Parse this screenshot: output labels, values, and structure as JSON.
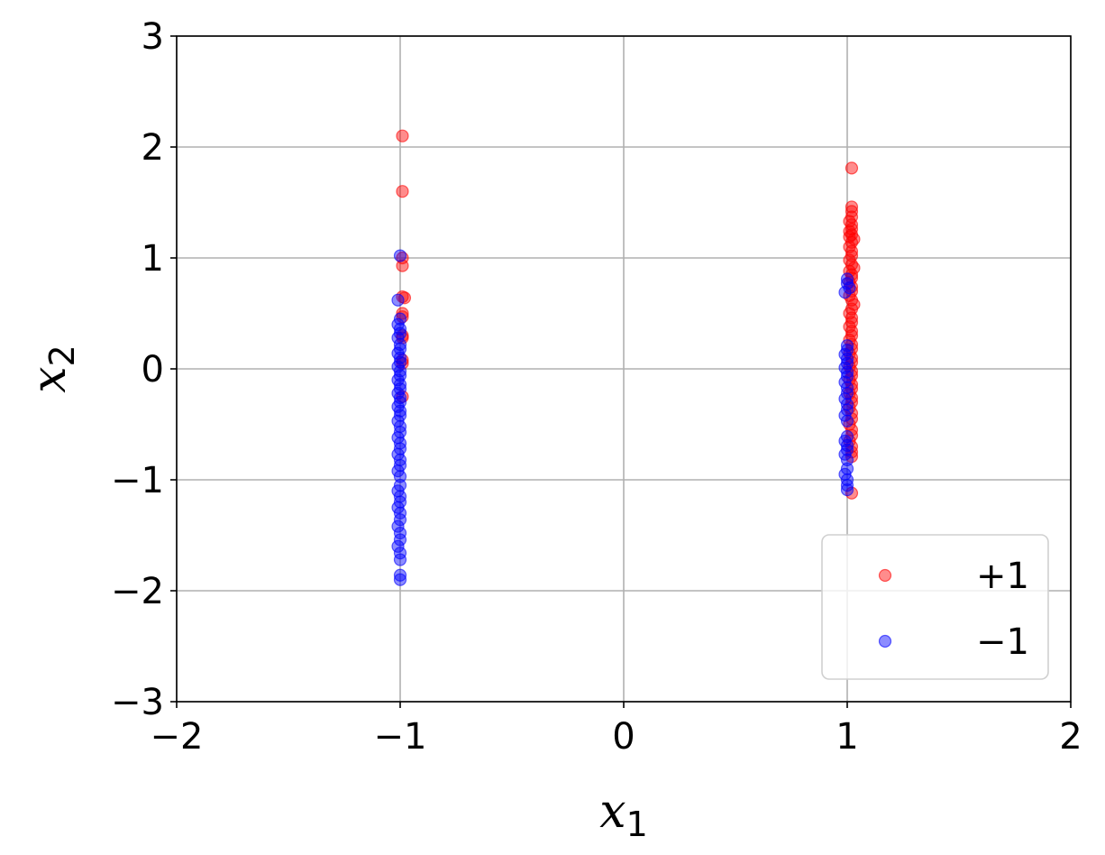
{
  "chart_data": {
    "type": "scatter",
    "xlabel": "x",
    "xlabel_sub": "1",
    "ylabel": "x",
    "ylabel_sub": "2",
    "xlim": [
      -2,
      2
    ],
    "ylim": [
      -3,
      3
    ],
    "xticks": [
      -2,
      -1,
      0,
      1,
      2
    ],
    "xtick_labels": [
      "−2",
      "−1",
      "0",
      "1",
      "2"
    ],
    "yticks": [
      -3,
      -2,
      -1,
      0,
      1,
      2,
      3
    ],
    "ytick_labels": [
      "−3",
      "−2",
      "−1",
      "0",
      "1",
      "2",
      "3"
    ],
    "grid": true,
    "legend_position": "bottom-right",
    "series": [
      {
        "name": "+1",
        "color": "#ff0000",
        "alpha": 0.45,
        "points": [
          [
            -0.99,
            2.1
          ],
          [
            -0.99,
            1.6
          ],
          [
            -0.99,
            1.0
          ],
          [
            -0.99,
            0.93
          ],
          [
            -0.99,
            0.65
          ],
          [
            -0.98,
            0.64
          ],
          [
            -0.99,
            0.5
          ],
          [
            -0.99,
            0.47
          ],
          [
            -0.99,
            0.3
          ],
          [
            -0.99,
            0.28
          ],
          [
            -0.99,
            0.08
          ],
          [
            -0.99,
            0.05
          ],
          [
            -0.99,
            -0.25
          ],
          [
            1.02,
            1.81
          ],
          [
            1.02,
            1.46
          ],
          [
            1.02,
            1.42
          ],
          [
            1.02,
            1.37
          ],
          [
            1.01,
            1.33
          ],
          [
            1.02,
            1.3
          ],
          [
            1.02,
            1.26
          ],
          [
            1.01,
            1.24
          ],
          [
            1.02,
            1.21
          ],
          [
            1.01,
            1.19
          ],
          [
            1.03,
            1.17
          ],
          [
            1.02,
            1.14
          ],
          [
            1.01,
            1.1
          ],
          [
            1.02,
            1.06
          ],
          [
            1.02,
            1.02
          ],
          [
            1.01,
            0.98
          ],
          [
            1.02,
            0.94
          ],
          [
            1.03,
            0.91
          ],
          [
            1.01,
            0.88
          ],
          [
            1.02,
            0.85
          ],
          [
            1.02,
            0.82
          ],
          [
            1.01,
            0.78
          ],
          [
            1.02,
            0.74
          ],
          [
            1.02,
            0.7
          ],
          [
            1.01,
            0.66
          ],
          [
            1.02,
            0.62
          ],
          [
            1.03,
            0.58
          ],
          [
            1.02,
            0.54
          ],
          [
            1.01,
            0.5
          ],
          [
            1.02,
            0.46
          ],
          [
            1.02,
            0.42
          ],
          [
            1.01,
            0.38
          ],
          [
            1.02,
            0.34
          ],
          [
            1.02,
            0.3
          ],
          [
            1.01,
            0.26
          ],
          [
            1.02,
            0.22
          ],
          [
            1.02,
            0.18
          ],
          [
            1.01,
            0.14
          ],
          [
            1.02,
            0.1
          ],
          [
            1.02,
            0.06
          ],
          [
            1.01,
            0.02
          ],
          [
            1.02,
            -0.02
          ],
          [
            1.02,
            -0.06
          ],
          [
            1.01,
            -0.1
          ],
          [
            1.02,
            -0.14
          ],
          [
            1.02,
            -0.18
          ],
          [
            1.01,
            -0.22
          ],
          [
            1.02,
            -0.26
          ],
          [
            1.02,
            -0.3
          ],
          [
            1.01,
            -0.35
          ],
          [
            1.02,
            -0.4
          ],
          [
            1.02,
            -0.45
          ],
          [
            1.01,
            -0.5
          ],
          [
            1.02,
            -0.55
          ],
          [
            1.02,
            -0.6
          ],
          [
            1.01,
            -0.65
          ],
          [
            1.02,
            -0.7
          ],
          [
            1.02,
            -0.75
          ],
          [
            1.02,
            -0.79
          ],
          [
            1.02,
            -1.12
          ]
        ]
      },
      {
        "name": "−1",
        "color": "#0000ff",
        "alpha": 0.45,
        "points": [
          [
            -1.0,
            1.02
          ],
          [
            -1.01,
            0.62
          ],
          [
            -1.0,
            0.45
          ],
          [
            -1.01,
            0.4
          ],
          [
            -1.0,
            0.36
          ],
          [
            -1.0,
            0.32
          ],
          [
            -1.01,
            0.28
          ],
          [
            -1.0,
            0.22
          ],
          [
            -1.0,
            0.18
          ],
          [
            -1.01,
            0.14
          ],
          [
            -1.0,
            0.1
          ],
          [
            -1.0,
            0.06
          ],
          [
            -1.01,
            0.02
          ],
          [
            -1.0,
            -0.02
          ],
          [
            -1.0,
            -0.06
          ],
          [
            -1.01,
            -0.1
          ],
          [
            -1.0,
            -0.14
          ],
          [
            -1.0,
            -0.18
          ],
          [
            -1.01,
            -0.22
          ],
          [
            -1.0,
            -0.26
          ],
          [
            -1.0,
            -0.3
          ],
          [
            -1.01,
            -0.34
          ],
          [
            -1.0,
            -0.38
          ],
          [
            -1.0,
            -0.42
          ],
          [
            -1.01,
            -0.47
          ],
          [
            -1.0,
            -0.52
          ],
          [
            -1.0,
            -0.57
          ],
          [
            -1.01,
            -0.62
          ],
          [
            -1.0,
            -0.67
          ],
          [
            -1.0,
            -0.72
          ],
          [
            -1.01,
            -0.77
          ],
          [
            -1.0,
            -0.82
          ],
          [
            -1.0,
            -0.87
          ],
          [
            -1.01,
            -0.92
          ],
          [
            -1.0,
            -0.97
          ],
          [
            -1.0,
            -1.05
          ],
          [
            -1.01,
            -1.1
          ],
          [
            -1.0,
            -1.15
          ],
          [
            -1.0,
            -1.2
          ],
          [
            -1.01,
            -1.25
          ],
          [
            -1.0,
            -1.3
          ],
          [
            -1.0,
            -1.36
          ],
          [
            -1.01,
            -1.42
          ],
          [
            -1.0,
            -1.48
          ],
          [
            -1.0,
            -1.54
          ],
          [
            -1.01,
            -1.6
          ],
          [
            -1.0,
            -1.66
          ],
          [
            -1.0,
            -1.72
          ],
          [
            -1.0,
            -1.86
          ],
          [
            -1.0,
            -1.9
          ],
          [
            1.0,
            0.81
          ],
          [
            1.0,
            0.77
          ],
          [
            1.01,
            0.73
          ],
          [
            0.99,
            0.69
          ],
          [
            1.0,
            0.21
          ],
          [
            1.0,
            0.17
          ],
          [
            0.99,
            0.13
          ],
          [
            1.0,
            0.09
          ],
          [
            1.0,
            0.05
          ],
          [
            0.99,
            0.01
          ],
          [
            1.0,
            -0.03
          ],
          [
            1.0,
            -0.07
          ],
          [
            0.99,
            -0.12
          ],
          [
            1.0,
            -0.17
          ],
          [
            1.0,
            -0.22
          ],
          [
            0.99,
            -0.27
          ],
          [
            1.0,
            -0.32
          ],
          [
            1.0,
            -0.37
          ],
          [
            0.99,
            -0.42
          ],
          [
            1.0,
            -0.47
          ],
          [
            1.0,
            -0.61
          ],
          [
            0.99,
            -0.65
          ],
          [
            1.0,
            -0.69
          ],
          [
            1.0,
            -0.73
          ],
          [
            0.99,
            -0.77
          ],
          [
            1.0,
            -0.82
          ],
          [
            1.0,
            -0.9
          ],
          [
            0.99,
            -0.95
          ],
          [
            1.0,
            -1.0
          ],
          [
            1.0,
            -1.05
          ],
          [
            1.0,
            -1.09
          ]
        ]
      }
    ]
  }
}
